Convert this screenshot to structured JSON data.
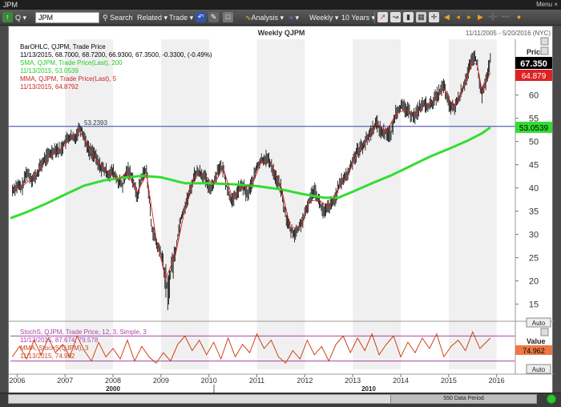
{
  "window": {
    "title": "JPM",
    "menu_label": "Menu",
    "close_label": "×"
  },
  "toolbar": {
    "symbol_value": "JPM",
    "search_label": "Search",
    "related_label": "Related ▾",
    "trade_label": "Trade ▾",
    "analysis_label": "Analysis ▾",
    "weekly_label": "Weekly ▾",
    "range_label": "10 Years ▾"
  },
  "chart": {
    "title": "Weekly QJPM",
    "date_range": "11/11/2005 - 5/20/2016 (NYC)",
    "legend": [
      {
        "text": "BarOHLC, QJPM, Trade Price",
        "color": "#000000"
      },
      {
        "text": "11/13/2015, 68.7000, 68.7200, 66.9300, 67.3500, -0.3300, (-0.49%)",
        "color": "#000000"
      },
      {
        "text": "SMA, QJPM, Trade Price(Last), 200",
        "color": "#22cc22"
      },
      {
        "text": "11/13/2015, 53.0539",
        "color": "#22cc22"
      },
      {
        "text": "MMA, QJPM, Trade Price(Last), 5",
        "color": "#cc2222"
      },
      {
        "text": "11/13/2015, 64.8792",
        "color": "#cc2222"
      }
    ],
    "price_axis_title": "Price",
    "auto_label": "Auto",
    "hline_label": "53.2393",
    "last_price": "67.350",
    "mma_value": "64.879",
    "sma_value": "53.0539",
    "lower": {
      "legend": [
        {
          "text": "StochS, QJPM, Trade Price,  12, 3, Simple, 3",
          "color": "#aa44aa"
        },
        {
          "text": "11/13/2015, 87.674, 79.578",
          "color": "#aa44aa"
        },
        {
          "text": "MMA, StochS(QJPM), 3",
          "color": "#cc4422"
        },
        {
          "text": "11/13/2015, 74.962",
          "color": "#cc4422"
        }
      ],
      "axis_title": "Value",
      "value_label": "74.962",
      "auto_label": "Auto"
    },
    "decade_labels": [
      "2000",
      "2010"
    ],
    "data_period": "550 Data Period"
  },
  "colors": {
    "sma": "#33dd33",
    "mma": "#dd2222",
    "bars": "#000000",
    "hline": "#3344aa",
    "stoch": "#cc3300",
    "band": "#aa44aa",
    "shade": "#f0f0f0"
  },
  "chart_data": {
    "type": "line",
    "title": "Weekly QJPM",
    "ylabel": "Price",
    "ylim": [
      12,
      72
    ],
    "y_ticks": [
      15,
      20,
      25,
      30,
      35,
      40,
      45,
      50,
      55,
      60
    ],
    "x_ticks": [
      "2006",
      "2007",
      "2008",
      "2009",
      "2010",
      "2011",
      "2012",
      "2013",
      "2014",
      "2015",
      "2016"
    ],
    "xlim": [
      2005.86,
      2016.39
    ],
    "horizontal_line": 53.2393,
    "series": [
      {
        "name": "BarOHLC, QJPM, Trade Price",
        "kind": "price",
        "x": [
          2005.9,
          2006.0,
          2006.1,
          2006.2,
          2006.3,
          2006.4,
          2006.5,
          2006.6,
          2006.7,
          2006.8,
          2006.9,
          2007.0,
          2007.1,
          2007.2,
          2007.3,
          2007.35,
          2007.4,
          2007.5,
          2007.6,
          2007.7,
          2007.8,
          2007.9,
          2008.0,
          2008.1,
          2008.2,
          2008.3,
          2008.4,
          2008.5,
          2008.6,
          2008.7,
          2008.75,
          2008.8,
          2008.9,
          2009.0,
          2009.1,
          2009.15,
          2009.2,
          2009.3,
          2009.4,
          2009.5,
          2009.6,
          2009.7,
          2009.8,
          2009.9,
          2010.0,
          2010.1,
          2010.2,
          2010.3,
          2010.4,
          2010.5,
          2010.6,
          2010.7,
          2010.8,
          2010.9,
          2011.0,
          2011.1,
          2011.2,
          2011.3,
          2011.4,
          2011.5,
          2011.6,
          2011.7,
          2011.8,
          2011.9,
          2012.0,
          2012.1,
          2012.2,
          2012.3,
          2012.4,
          2012.5,
          2012.6,
          2012.7,
          2012.8,
          2012.9,
          2013.0,
          2013.1,
          2013.2,
          2013.3,
          2013.4,
          2013.5,
          2013.6,
          2013.7,
          2013.8,
          2013.9,
          2014.0,
          2014.1,
          2014.2,
          2014.3,
          2014.4,
          2014.5,
          2014.6,
          2014.7,
          2014.8,
          2014.9,
          2015.0,
          2015.1,
          2015.2,
          2015.3,
          2015.4,
          2015.5,
          2015.55,
          2015.6,
          2015.65,
          2015.7,
          2015.8,
          2015.87
        ],
        "y": [
          39.5,
          40.5,
          40.0,
          43.5,
          42.0,
          42.5,
          45.0,
          46.5,
          47.5,
          48.5,
          48.0,
          50.0,
          51.0,
          50.5,
          53.0,
          52.5,
          51.0,
          48.0,
          47.5,
          45.0,
          44.0,
          43.0,
          43.5,
          41.5,
          40.5,
          44.0,
          42.5,
          38.0,
          42.5,
          44.0,
          38.0,
          32.0,
          28.0,
          26.0,
          20.0,
          17.0,
          22.0,
          26.0,
          33.0,
          36.0,
          39.0,
          43.0,
          43.5,
          42.5,
          40.0,
          41.0,
          44.5,
          44.0,
          39.0,
          37.0,
          39.5,
          40.5,
          38.5,
          41.0,
          44.5,
          46.0,
          46.5,
          45.0,
          42.0,
          40.0,
          34.0,
          31.0,
          30.0,
          32.0,
          34.0,
          37.5,
          40.0,
          37.0,
          34.5,
          36.0,
          37.0,
          40.0,
          42.0,
          43.0,
          46.0,
          48.0,
          49.0,
          50.5,
          52.5,
          54.0,
          52.0,
          52.0,
          51.5,
          56.5,
          57.5,
          57.0,
          56.0,
          55.5,
          57.5,
          58.0,
          57.5,
          59.0,
          60.5,
          62.0,
          58.0,
          57.0,
          59.0,
          61.5,
          65.0,
          67.5,
          68.5,
          66.0,
          62.0,
          60.0,
          64.0,
          67.35
        ]
      },
      {
        "name": "SMA, QJPM, Trade Price(Last), 200",
        "kind": "sma",
        "x": [
          2005.86,
          2006.2,
          2006.6,
          2007.0,
          2007.4,
          2007.8,
          2008.2,
          2008.6,
          2009.0,
          2009.5,
          2010.0,
          2010.5,
          2011.0,
          2011.5,
          2012.0,
          2012.4,
          2012.7,
          2013.0,
          2013.4,
          2013.8,
          2014.2,
          2014.6,
          2015.0,
          2015.4,
          2015.7,
          2015.87
        ],
        "y": [
          33.5,
          34.8,
          36.6,
          38.6,
          40.5,
          41.6,
          42.2,
          42.6,
          42.3,
          41.0,
          41.0,
          40.8,
          40.4,
          39.7,
          38.6,
          37.9,
          37.9,
          39.2,
          41.0,
          42.7,
          44.7,
          46.7,
          48.4,
          50.2,
          51.8,
          53.05
        ]
      },
      {
        "name": "MMA, QJPM, Trade Price(Last), 5",
        "kind": "mma",
        "x": [
          2005.9,
          2006.1,
          2006.3,
          2006.5,
          2006.7,
          2006.9,
          2007.1,
          2007.3,
          2007.5,
          2007.7,
          2007.9,
          2008.1,
          2008.3,
          2008.5,
          2008.7,
          2008.9,
          2009.1,
          2009.3,
          2009.5,
          2009.7,
          2009.9,
          2010.1,
          2010.3,
          2010.5,
          2010.7,
          2010.9,
          2011.1,
          2011.3,
          2011.5,
          2011.7,
          2011.9,
          2012.1,
          2012.3,
          2012.5,
          2012.7,
          2012.9,
          2013.1,
          2013.3,
          2013.5,
          2013.7,
          2013.9,
          2014.1,
          2014.3,
          2014.5,
          2014.7,
          2014.9,
          2015.1,
          2015.3,
          2015.5,
          2015.6,
          2015.7,
          2015.87
        ],
        "y": [
          39.5,
          40.3,
          42.0,
          44.6,
          47.0,
          48.1,
          50.5,
          52.3,
          48.5,
          45.4,
          43.4,
          41.8,
          43.3,
          39.0,
          43.0,
          29.0,
          20.5,
          25.5,
          35.5,
          42.5,
          42.8,
          40.8,
          44.2,
          37.5,
          40.2,
          40.6,
          45.8,
          45.2,
          40.4,
          31.4,
          31.6,
          37.2,
          37.4,
          35.8,
          39.6,
          42.7,
          47.8,
          50.3,
          53.8,
          52.0,
          56.0,
          56.8,
          55.7,
          57.8,
          58.8,
          61.4,
          57.3,
          61.2,
          67.1,
          66.4,
          60.5,
          64.88
        ]
      }
    ],
    "lower_chart": {
      "type": "line",
      "ylim": [
        0,
        100
      ],
      "band_levels": [
        20,
        80
      ],
      "series": [
        {
          "name": "MMA, StochS(QJPM), 3",
          "x": [
            2005.9,
            2006.05,
            2006.2,
            2006.35,
            2006.5,
            2006.65,
            2006.8,
            2006.95,
            2007.1,
            2007.25,
            2007.4,
            2007.55,
            2007.7,
            2007.85,
            2008.0,
            2008.15,
            2008.3,
            2008.45,
            2008.6,
            2008.75,
            2008.9,
            2009.05,
            2009.2,
            2009.35,
            2009.5,
            2009.65,
            2009.8,
            2009.95,
            2010.1,
            2010.25,
            2010.4,
            2010.55,
            2010.7,
            2010.85,
            2011.0,
            2011.15,
            2011.3,
            2011.45,
            2011.6,
            2011.75,
            2011.9,
            2012.05,
            2012.2,
            2012.35,
            2012.5,
            2012.65,
            2012.8,
            2012.95,
            2013.1,
            2013.25,
            2013.4,
            2013.55,
            2013.7,
            2013.85,
            2014.0,
            2014.15,
            2014.3,
            2014.45,
            2014.6,
            2014.75,
            2014.9,
            2015.05,
            2015.2,
            2015.35,
            2015.5,
            2015.65,
            2015.87
          ],
          "y": [
            30,
            55,
            25,
            70,
            35,
            75,
            40,
            60,
            30,
            80,
            45,
            20,
            65,
            30,
            50,
            25,
            70,
            20,
            55,
            30,
            15,
            40,
            20,
            60,
            80,
            45,
            70,
            35,
            65,
            25,
            75,
            30,
            60,
            40,
            85,
            50,
            70,
            30,
            15,
            45,
            25,
            70,
            35,
            55,
            20,
            60,
            80,
            40,
            75,
            45,
            85,
            35,
            60,
            80,
            30,
            65,
            40,
            75,
            50,
            85,
            30,
            55,
            70,
            45,
            90,
            50,
            75
          ]
        }
      ]
    }
  }
}
